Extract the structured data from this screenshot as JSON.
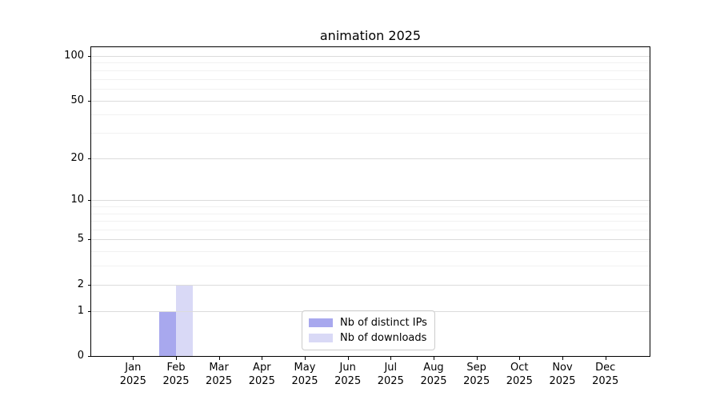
{
  "chart_data": {
    "type": "bar",
    "title": "animation 2025",
    "categories": [
      "Jan",
      "Feb",
      "Mar",
      "Apr",
      "May",
      "Jun",
      "Jul",
      "Aug",
      "Sep",
      "Oct",
      "Nov",
      "Dec"
    ],
    "year_label": "2025",
    "series": [
      {
        "name": "Nb of distinct IPs",
        "color": "#a8a8ee",
        "values": [
          0,
          1,
          0,
          0,
          0,
          0,
          0,
          0,
          0,
          0,
          0,
          0
        ]
      },
      {
        "name": "Nb of downloads",
        "color": "#d9d9f6",
        "values": [
          0,
          2,
          0,
          0,
          0,
          0,
          0,
          0,
          0,
          0,
          0,
          0
        ]
      }
    ],
    "xlabel": "",
    "ylabel": "",
    "y_axis": {
      "scale": "log1p",
      "ticks": [
        0,
        1,
        2,
        5,
        10,
        20,
        50,
        100
      ],
      "minor_ticks": [
        3,
        4,
        6,
        7,
        8,
        9,
        30,
        40,
        60,
        70,
        80,
        90
      ],
      "ylim": [
        0,
        114.6
      ]
    },
    "grid": {
      "on": true,
      "major_color": "#dcdcdc",
      "minor_color": "#f1f1f1"
    },
    "legend": {
      "position": "lower center",
      "border_color": "#cccccc"
    }
  }
}
